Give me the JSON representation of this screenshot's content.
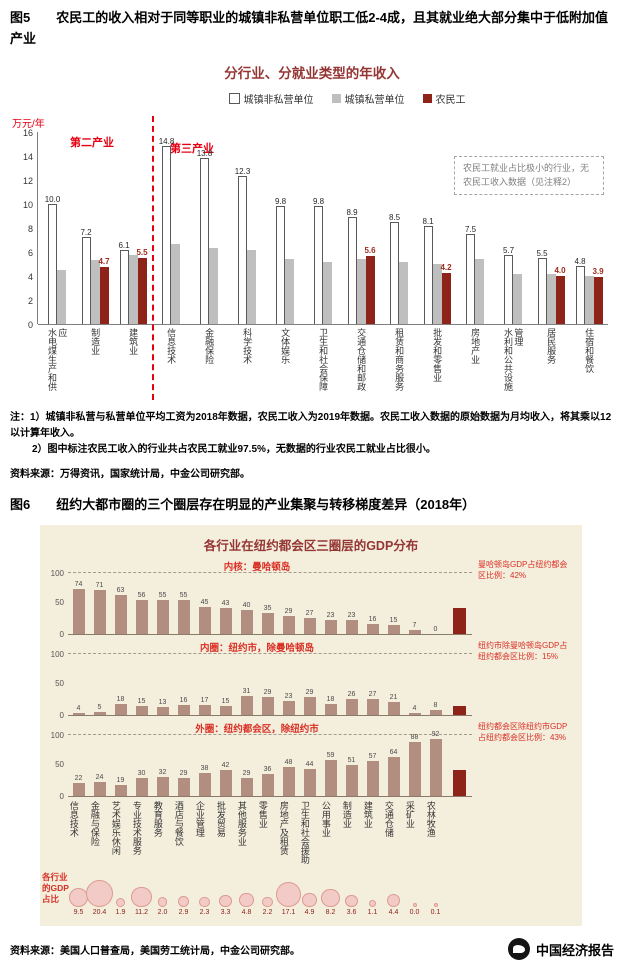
{
  "fig5": {
    "label": "图5",
    "text": "农民工的收入相对于同等职业的城镇非私营单位职工低2-4成，且其就业绝大部分集中于低附加值产业",
    "notes": [
      "注：1）城镇非私营与私营单位平均工资为2018年数据，农民工收入为2019年数据。农民工收入数据的原始数据为月均收入，将其乘以12以计算年收入。",
      "2）图中标注农民工收入的行业共占农民工就业97.5%，无数据的行业农民工就业占比很小。"
    ],
    "source": "资料来源：万得资讯，国家统计局，中金公司研究部。"
  },
  "fig6": {
    "label": "图6",
    "text": "纽约大都市圈的三个圈层存在明显的产业集聚与转移梯度差异（2018年）",
    "source": "资料来源：美国人口普查局，美国劳工统计局，中金公司研究部。"
  },
  "watermark": {
    "text": "中国经济报告"
  },
  "colors": {
    "accent_red": "#e60012",
    "maroon_bar": "#8e231a",
    "title_maroon": "#943634",
    "gray_bar": "#bfbfbf",
    "tan_bar": "#b18e80",
    "beige_bg": "#f4eedd",
    "bubble_fill": "#f3cbc6"
  },
  "chart_data": [
    {
      "type": "bar",
      "title": "分行业、分就业类型的年收入",
      "unit_label": "万元/年",
      "ylim": [
        0,
        16
      ],
      "yticks": [
        0,
        2,
        4,
        6,
        8,
        10,
        12,
        14,
        16
      ],
      "grid": false,
      "legend": [
        "城镇非私营单位",
        "城镇私营单位",
        "农民工"
      ],
      "legend_position": "top",
      "section_labels": [
        "第二产业",
        "第三产业"
      ],
      "separator_after_index": 2,
      "annotation": "农民工就业占比极小的行业，无农民工收入数据（见注释2）",
      "categories": [
        "水电煤生产和供应",
        "制造业",
        "建筑业",
        "信息技术",
        "金融保险",
        "科学技术",
        "文体娱乐",
        "卫生和社会保障",
        "交通仓储和邮政",
        "租赁和商务服务",
        "批发和零售业",
        "房地产业",
        "水利和公共设施管理",
        "居民服务",
        "住宿和餐饮"
      ],
      "series": [
        {
          "name": "城镇非私营单位",
          "labeled": true,
          "values": [
            10.0,
            7.2,
            6.1,
            14.8,
            13.8,
            12.3,
            9.8,
            9.8,
            8.9,
            8.5,
            8.1,
            7.5,
            5.7,
            5.5,
            4.8
          ]
        },
        {
          "name": "城镇私营单位",
          "labeled": false,
          "values": [
            4.5,
            5.3,
            5.7,
            6.6,
            6.3,
            6.1,
            5.4,
            5.1,
            5.4,
            5.1,
            5.0,
            5.4,
            4.1,
            4.1,
            4.0
          ]
        },
        {
          "name": "农民工",
          "labeled": true,
          "values": [
            null,
            4.7,
            5.5,
            null,
            null,
            null,
            null,
            null,
            5.6,
            null,
            4.2,
            null,
            null,
            4.0,
            3.9
          ]
        }
      ]
    },
    {
      "type": "bar",
      "title": "各行业在纽约都会区三圈层的GDP分布",
      "ylim": [
        0,
        100
      ],
      "yticks": [
        0,
        50,
        100
      ],
      "grid": "dashed-top",
      "categories": [
        "信息技术",
        "金融与保险",
        "艺术娱乐休闲",
        "专业技术服务",
        "教育服务",
        "酒店与餐饮",
        "企业管理",
        "批发贸易",
        "其他服务业",
        "零售业",
        "房地产及租赁",
        "卫生和社会援助",
        "公用事业",
        "制造业",
        "建筑业",
        "交通仓储",
        "采矿业",
        "农林牧渔"
      ],
      "panels": [
        {
          "label": "内核：曼哈顿岛",
          "values": [
            74,
            71,
            63,
            56,
            55,
            55,
            45,
            43,
            40,
            35,
            29,
            27,
            23,
            23,
            16,
            15,
            7,
            0
          ],
          "share_value": 42,
          "annotation": "曼哈顿岛GDP占纽约都会区比例：42%"
        },
        {
          "label": "内圈：纽约市，除曼哈顿岛",
          "values": [
            4,
            5,
            18,
            15,
            13,
            16,
            17,
            15,
            31,
            29,
            23,
            29,
            18,
            26,
            27,
            21,
            4,
            8
          ],
          "share_value": 15,
          "annotation": "纽约市除曼哈顿岛GDP占纽约都会区比例：15%"
        },
        {
          "label": "外圈：纽约都会区，除纽约市",
          "values": [
            22,
            24,
            19,
            30,
            32,
            29,
            38,
            42,
            29,
            36,
            48,
            44,
            59,
            51,
            57,
            64,
            88,
            92
          ],
          "share_value": 43,
          "annotation": "纽约都会区除纽约市GDP占纽约都会区比例：43%"
        }
      ],
      "bubble_row_label": "各行业的GDP占比",
      "gdp_share": [
        9.5,
        20.4,
        1.9,
        11.2,
        2.0,
        2.9,
        2.3,
        3.3,
        4.8,
        2.2,
        17.1,
        4.9,
        8.2,
        3.6,
        1.1,
        4.4,
        0.0,
        0.1
      ]
    }
  ]
}
